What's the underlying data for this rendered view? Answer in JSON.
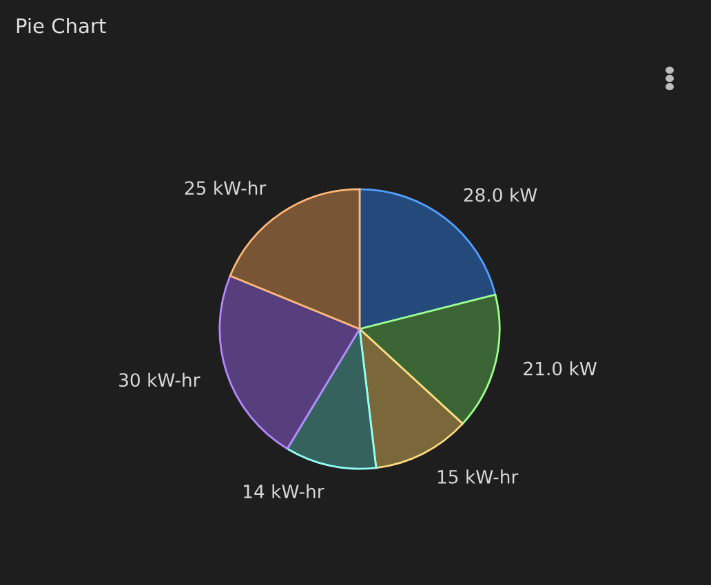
{
  "chart_data": {
    "type": "pie",
    "title": "Pie Chart",
    "categories": [
      null,
      null,
      null,
      null,
      null,
      null
    ],
    "values": [
      28,
      21,
      15,
      14,
      30,
      25
    ],
    "value_labels": [
      "28.0 kW",
      "21.0 kW",
      "15 kW-hr",
      "14 kW-hr",
      "30 kW-hr",
      "25 kW-hr"
    ],
    "colors": [
      "#234a7a",
      "#3c6535",
      "#7a683a",
      "#36625e",
      "#563f7c",
      "#785534"
    ],
    "legend": false
  }
}
